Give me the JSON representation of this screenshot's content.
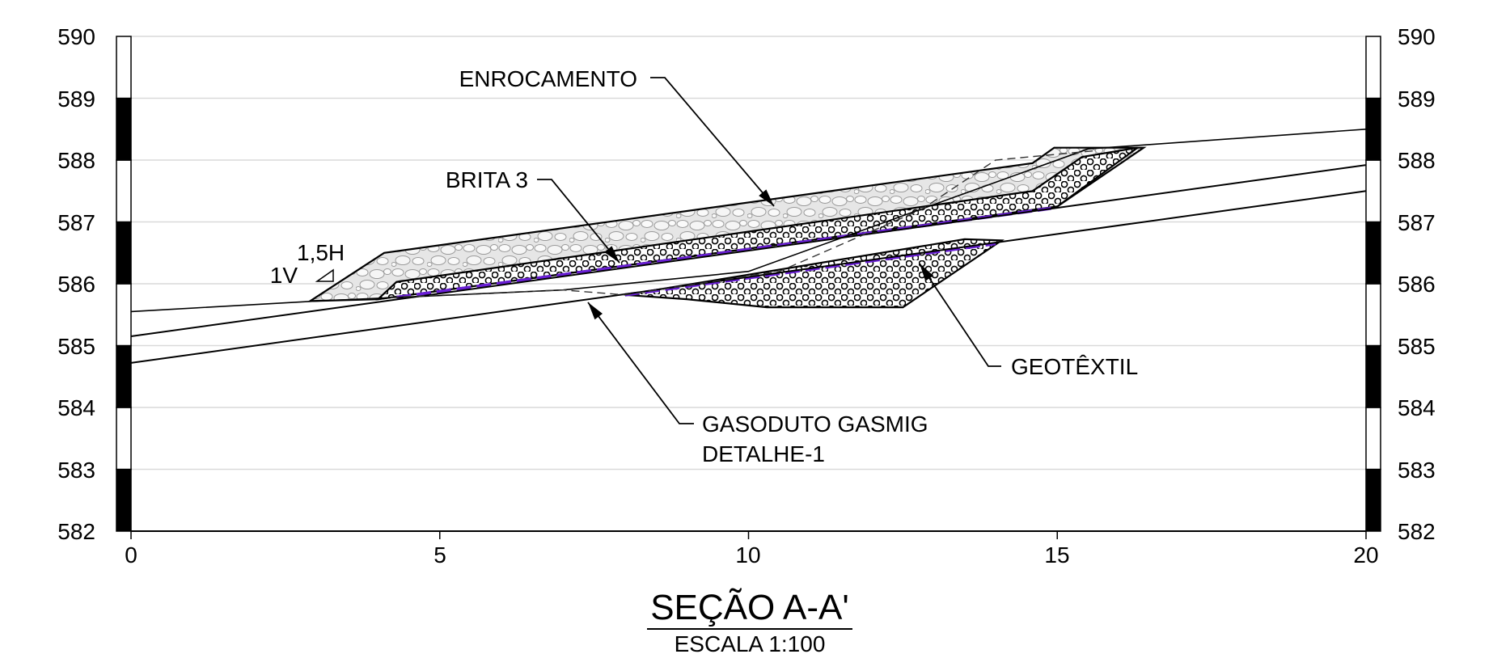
{
  "chart_data": {
    "type": "cross-section",
    "xlim": [
      0,
      20
    ],
    "ylim": [
      582,
      590
    ],
    "x_ticks": [
      "0",
      "5",
      "10",
      "15",
      "20"
    ],
    "y_ticks_left": [
      "590",
      "589",
      "588",
      "587",
      "586",
      "585",
      "584",
      "583",
      "582"
    ],
    "y_ticks_right": [
      "590",
      "589",
      "588",
      "587",
      "586",
      "585",
      "584",
      "583",
      "582"
    ],
    "grid": true,
    "terrain": [
      [
        0,
        585.55
      ],
      [
        3.0,
        585.72
      ],
      [
        7.0,
        585.9
      ],
      [
        10.0,
        586.2
      ],
      [
        15.5,
        588.18
      ],
      [
        20,
        588.5
      ]
    ],
    "pipe_upper": [
      [
        0,
        585.15
      ],
      [
        20,
        587.92
      ]
    ],
    "pipe_lower": [
      [
        0,
        584.72
      ],
      [
        20,
        587.5
      ]
    ],
    "enrocamento": [
      [
        2.9,
        585.72
      ],
      [
        4.1,
        586.5
      ],
      [
        14.6,
        587.95
      ],
      [
        14.95,
        588.2
      ],
      [
        16.4,
        588.2
      ],
      [
        15.0,
        587.25
      ],
      [
        4.0,
        585.75
      ]
    ],
    "brita_upper": [
      [
        4.0,
        585.75
      ],
      [
        4.3,
        586.03
      ],
      [
        14.6,
        587.5
      ],
      [
        15.4,
        588.05
      ],
      [
        16.3,
        588.2
      ],
      [
        15.0,
        587.25
      ]
    ],
    "brita_lower": [
      [
        8.0,
        585.82
      ],
      [
        13.5,
        586.72
      ],
      [
        14.1,
        586.7
      ],
      [
        12.5,
        585.62
      ],
      [
        10.3,
        585.62
      ],
      [
        9.0,
        585.75
      ]
    ],
    "geotextile_upper": [
      [
        4.3,
        585.78
      ],
      [
        14.9,
        587.22
      ]
    ],
    "geotextile_lower": [
      [
        8.0,
        585.82
      ],
      [
        14.0,
        586.65
      ]
    ],
    "existing_ground_dashed": [
      [
        4.2,
        585.78
      ],
      [
        7.0,
        585.9
      ],
      [
        8.0,
        585.82
      ],
      [
        10.5,
        586.2
      ],
      [
        12.8,
        587.2
      ],
      [
        14.0,
        588.0
      ],
      [
        15.6,
        588.15
      ]
    ],
    "slope_ratio": [
      "1V",
      "1,5H"
    ],
    "annotations": [
      {
        "text": "ENROCAMENTO",
        "target": [
          10.3,
          587.3
        ]
      },
      {
        "text": "BRITA 3",
        "target": [
          7.8,
          586.3
        ]
      },
      {
        "text": "GEOTÊXTIL",
        "target": [
          12.6,
          586.45
        ]
      },
      {
        "text": "GASODUTO GASMIG\nDETALHE-1",
        "target": [
          7.4,
          585.8
        ]
      }
    ]
  },
  "labels": {
    "enrocamento": "ENROCAMENTO",
    "brita": "BRITA 3",
    "geotextil": "GEOTÊXTIL",
    "gasoduto_line1": "GASODUTO GASMIG",
    "gasoduto_line2": "DETALHE-1",
    "slope_v": "1V",
    "slope_h": "1,5H"
  },
  "title": "SEÇÃO A-A'",
  "scale": "ESCALA 1:100",
  "colors": {
    "geotextile": "#6a1fd6",
    "grid": "#d9d9d9",
    "line": "#000000",
    "rock_fill": "#e4e4e4"
  }
}
